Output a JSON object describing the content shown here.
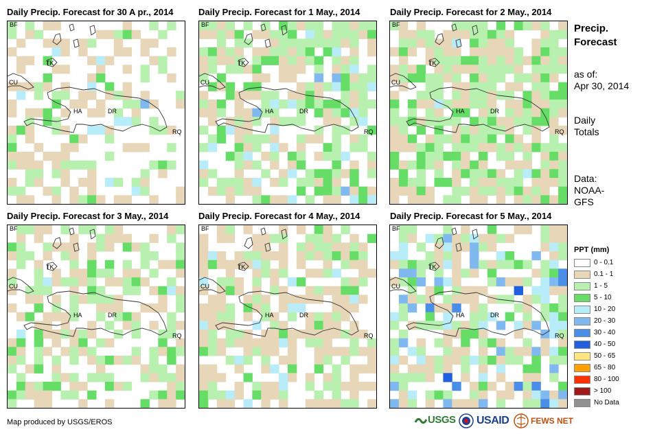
{
  "maps": [
    {
      "title": "Daily Precip. Forecast for 30 A pr., 2014"
    },
    {
      "title": "Daily Precip. Forecast for 1 May., 2014"
    },
    {
      "title": "Daily Precip. Forecast for 2 May., 2014"
    },
    {
      "title": "Daily Precip. Forecast for 3 May., 2014"
    },
    {
      "title": "Daily Precip. Forecast for 4 May., 2014"
    },
    {
      "title": "Daily Precip. Forecast for 5 May., 2014"
    }
  ],
  "country_codes": {
    "bf": "BF",
    "tk": "TK",
    "cu": "CU",
    "ha": "HA",
    "dr": "DR",
    "rq": "RQ"
  },
  "side": {
    "title_line1": "Precip.",
    "title_line2": "Forecast",
    "asof_line1": "as of:",
    "asof_line2": "Apr 30, 2014",
    "daily_line1": "Daily",
    "daily_line2": "Totals",
    "data_line1": "Data:",
    "data_line2": "NOAA-",
    "data_line3": "GFS"
  },
  "legend": {
    "title": "PPT (mm)",
    "items": [
      {
        "label": "0 - 0.1",
        "color": "#ffffff"
      },
      {
        "label": "0.1 - 1",
        "color": "#e8d6b8"
      },
      {
        "label": "1 - 5",
        "color": "#b8f0b0"
      },
      {
        "label": "5 - 10",
        "color": "#66dd66"
      },
      {
        "label": "10 - 20",
        "color": "#b8ecf8"
      },
      {
        "label": "20 - 30",
        "color": "#80b8f0"
      },
      {
        "label": "30 - 40",
        "color": "#4a8ee8"
      },
      {
        "label": "40 - 50",
        "color": "#2060e0"
      },
      {
        "label": "50 - 65",
        "color": "#ffe680"
      },
      {
        "label": "65 - 80",
        "color": "#ffa000"
      },
      {
        "label": "80 - 100",
        "color": "#ff3000"
      },
      {
        "label": "> 100",
        "color": "#a01818"
      },
      {
        "label": "No Data",
        "color": "#909090"
      }
    ]
  },
  "footer": {
    "credit": "Map produced by USGS/EROS"
  },
  "logos": {
    "usgs": "USGS",
    "usaid": "USAID",
    "fews": "FEWS NET"
  }
}
